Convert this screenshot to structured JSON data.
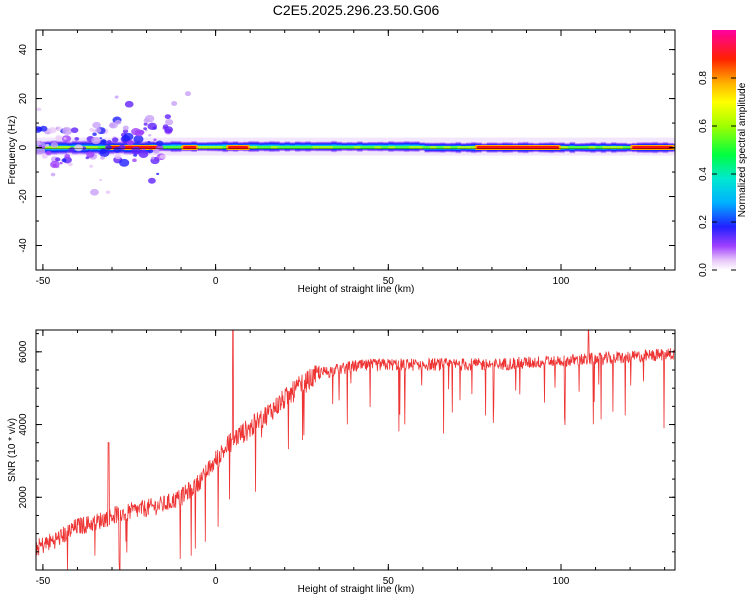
{
  "figure_title": "C2E5.2025.296.23.50.G06",
  "chart_data": [
    {
      "type": "heatmap",
      "title": "C2E5.2025.296.23.50.G06",
      "xlabel": "Height of straight line (km)",
      "ylabel": "Frequency (Hz)",
      "xlim": [
        -52,
        133
      ],
      "ylim": [
        -50,
        48
      ],
      "xticks": [
        -50,
        0,
        50,
        100
      ],
      "yticks": [
        40,
        20,
        0,
        -20,
        -40
      ],
      "colorbar": {
        "label": "Normalized spectral amplitude",
        "range": [
          0,
          1
        ],
        "ticks": [
          0.0,
          0.2,
          0.4,
          0.6,
          0.8
        ]
      },
      "ridge": {
        "description": "Dominant spectral energy concentrated near 0 Hz across the full height range; noisy speckle at low heights",
        "center_frequency_hz": 0,
        "bright_segments_km": [
          [
            -32,
            -16
          ],
          [
            -10,
            -5
          ],
          [
            3,
            10
          ],
          [
            75,
            100
          ],
          [
            120,
            133
          ]
        ]
      }
    },
    {
      "type": "line",
      "xlabel": "Height of straight line (km)",
      "ylabel": "SNR (10 * v/v)",
      "xlim": [
        -52,
        133
      ],
      "ylim": [
        0,
        6600
      ],
      "xticks": [
        -50,
        0,
        50,
        100
      ],
      "yticks": [
        2000,
        4000,
        6000
      ],
      "color": "#ee3333",
      "series": [
        {
          "name": "SNR",
          "x": [
            -52,
            -45,
            -40,
            -35,
            -30,
            -25,
            -20,
            -15,
            -10,
            -5,
            0,
            5,
            10,
            15,
            20,
            25,
            30,
            40,
            50,
            60,
            70,
            80,
            90,
            100,
            110,
            120,
            133
          ],
          "values": [
            600,
            900,
            1200,
            1300,
            1500,
            1600,
            1700,
            1800,
            2000,
            2400,
            3000,
            3600,
            3900,
            4300,
            4700,
            5100,
            5400,
            5600,
            5650,
            5650,
            5650,
            5650,
            5700,
            5750,
            5800,
            5850,
            5950
          ]
        }
      ],
      "spikes": [
        {
          "x": -31,
          "y": 3500
        },
        {
          "x": 5,
          "y": 6600
        },
        {
          "x": 108,
          "y": 6700
        }
      ]
    }
  ]
}
